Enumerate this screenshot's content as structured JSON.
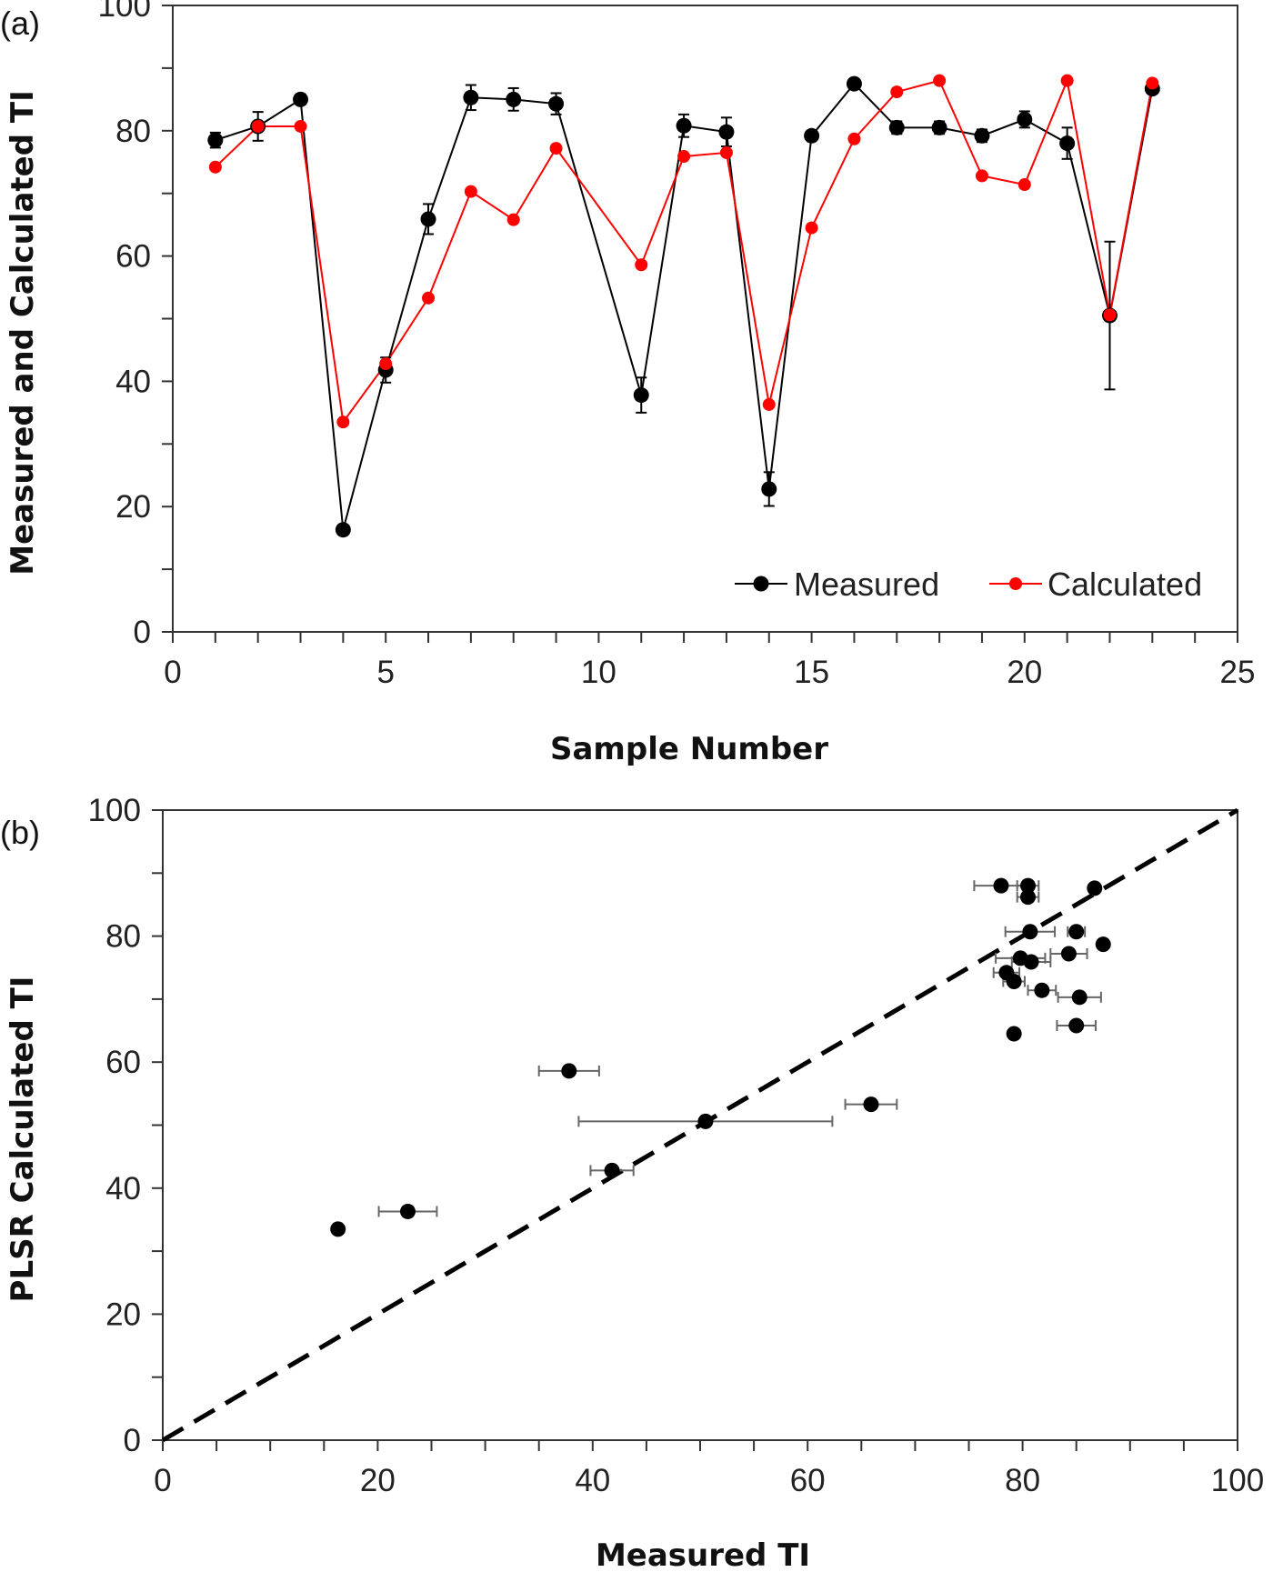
{
  "chart_data": [
    {
      "type": "line",
      "panel_label": "(a)",
      "xlabel": "Sample Number",
      "ylabel": "Measured and Calculated TI",
      "xlim": [
        0,
        25
      ],
      "ylim": [
        0,
        100
      ],
      "xticks": [
        "0",
        "5",
        "10",
        "15",
        "20",
        "25"
      ],
      "yticks": [
        "0",
        "20",
        "40",
        "60",
        "80",
        "100"
      ],
      "grid": false,
      "legend_position": "bottom-right",
      "x": [
        1,
        2,
        3,
        4,
        5,
        6,
        7,
        8,
        9,
        11,
        12,
        13,
        14,
        15,
        16,
        17,
        18,
        19,
        20,
        21,
        22,
        23
      ],
      "series": [
        {
          "name": "Measured",
          "color": "#000000",
          "values": [
            78.5,
            80.7,
            85.0,
            16.3,
            41.8,
            65.9,
            85.3,
            85.0,
            84.3,
            37.8,
            80.8,
            79.8,
            22.8,
            79.2,
            87.5,
            80.5,
            80.5,
            79.2,
            81.8,
            78.0,
            50.5,
            86.7
          ],
          "error": [
            1.2,
            2.3,
            0.8,
            0.5,
            2.0,
            2.4,
            2.0,
            1.8,
            1.7,
            2.8,
            1.8,
            2.3,
            2.7,
            0.5,
            0.5,
            1.0,
            1.0,
            1.0,
            1.3,
            2.5,
            11.8,
            0.5
          ]
        },
        {
          "name": "Calculated",
          "color": "#ff0000",
          "values": [
            74.2,
            80.7,
            80.7,
            33.5,
            42.8,
            53.3,
            70.3,
            65.8,
            77.2,
            58.6,
            75.9,
            76.5,
            36.3,
            64.5,
            78.7,
            86.2,
            88.0,
            72.8,
            71.4,
            88.0,
            50.6,
            87.6
          ]
        }
      ]
    },
    {
      "type": "scatter",
      "panel_label": "(b)",
      "xlabel": "Measured TI",
      "ylabel": "PLSR Calculated TI",
      "xlim": [
        0,
        100
      ],
      "ylim": [
        0,
        100
      ],
      "xticks": [
        "0",
        "20",
        "40",
        "60",
        "80",
        "100"
      ],
      "yticks": [
        "0",
        "20",
        "40",
        "60",
        "80",
        "100"
      ],
      "grid": false,
      "reference_line": "y = x (dashed)",
      "points": {
        "x": [
          78.5,
          80.7,
          85.0,
          16.3,
          41.8,
          65.9,
          85.3,
          85.0,
          84.3,
          37.8,
          80.8,
          79.8,
          22.8,
          79.2,
          87.5,
          80.5,
          80.5,
          79.2,
          81.8,
          78.0,
          50.5,
          86.7
        ],
        "y": [
          74.2,
          80.7,
          80.7,
          33.5,
          42.8,
          53.3,
          70.3,
          65.8,
          77.2,
          58.6,
          75.9,
          76.5,
          36.3,
          64.5,
          78.7,
          86.2,
          88.0,
          72.8,
          71.4,
          88.0,
          50.6,
          87.6
        ],
        "xerr": [
          1.2,
          2.3,
          0.8,
          0.5,
          2.0,
          2.4,
          2.0,
          1.8,
          1.7,
          2.8,
          1.8,
          2.3,
          2.7,
          0.5,
          0.5,
          1.0,
          1.0,
          1.0,
          1.3,
          2.5,
          11.8,
          0.5
        ]
      }
    }
  ]
}
